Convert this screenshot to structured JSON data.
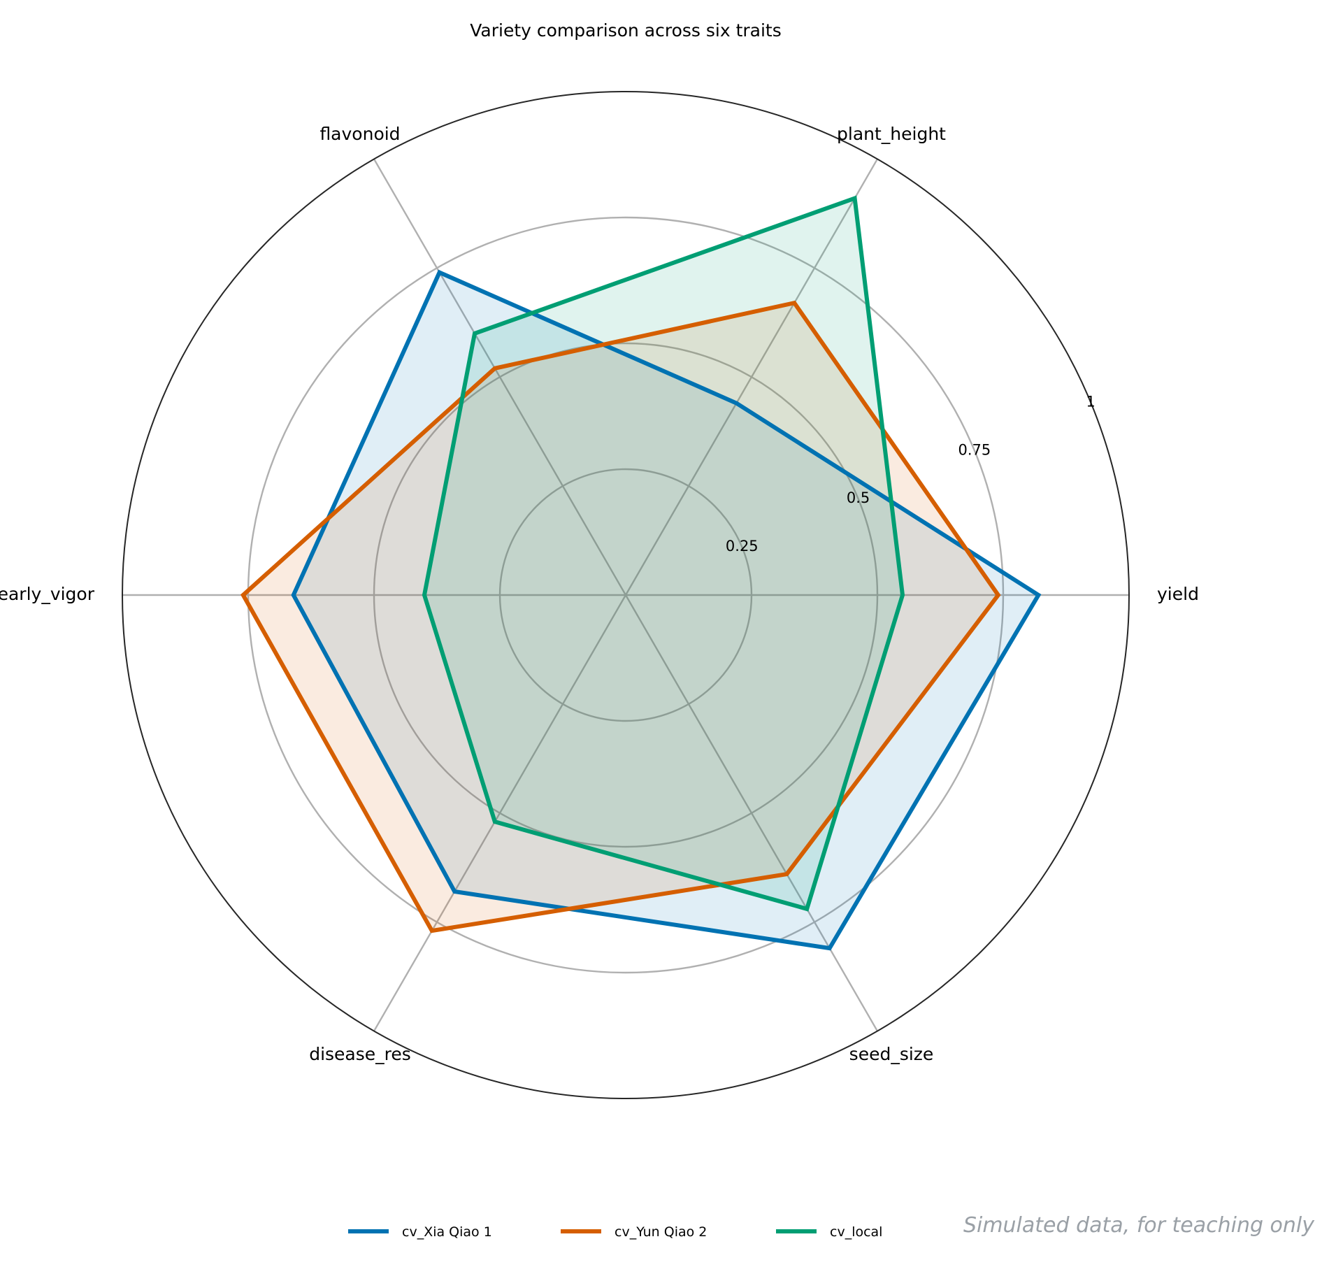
{
  "chart_data": {
    "type": "radar",
    "title": "Variety comparison across six traits",
    "axes": [
      "yield",
      "plant_height",
      "flavonoid",
      "early_vigor",
      "disease_res",
      "seed_size"
    ],
    "rlim": [
      0,
      1
    ],
    "rticks": [
      0.25,
      0.5,
      0.75,
      1
    ],
    "rtick_labels": [
      "0.25",
      "0.5",
      "0.75",
      "1"
    ],
    "grid": true,
    "legend_position": "bottom-center",
    "series": [
      {
        "name": "cv_Xia Qiao 1",
        "color": "#0072b2",
        "values": [
          0.82,
          0.44,
          0.74,
          0.66,
          0.68,
          0.81
        ]
      },
      {
        "name": "cv_Yun Qiao 2",
        "color": "#d55e00",
        "values": [
          0.74,
          0.67,
          0.52,
          0.76,
          0.77,
          0.64
        ]
      },
      {
        "name": "cv_local",
        "color": "#009e73",
        "values": [
          0.55,
          0.91,
          0.6,
          0.4,
          0.52,
          0.72
        ]
      }
    ]
  },
  "footnote": "Simulated data, for teaching only"
}
